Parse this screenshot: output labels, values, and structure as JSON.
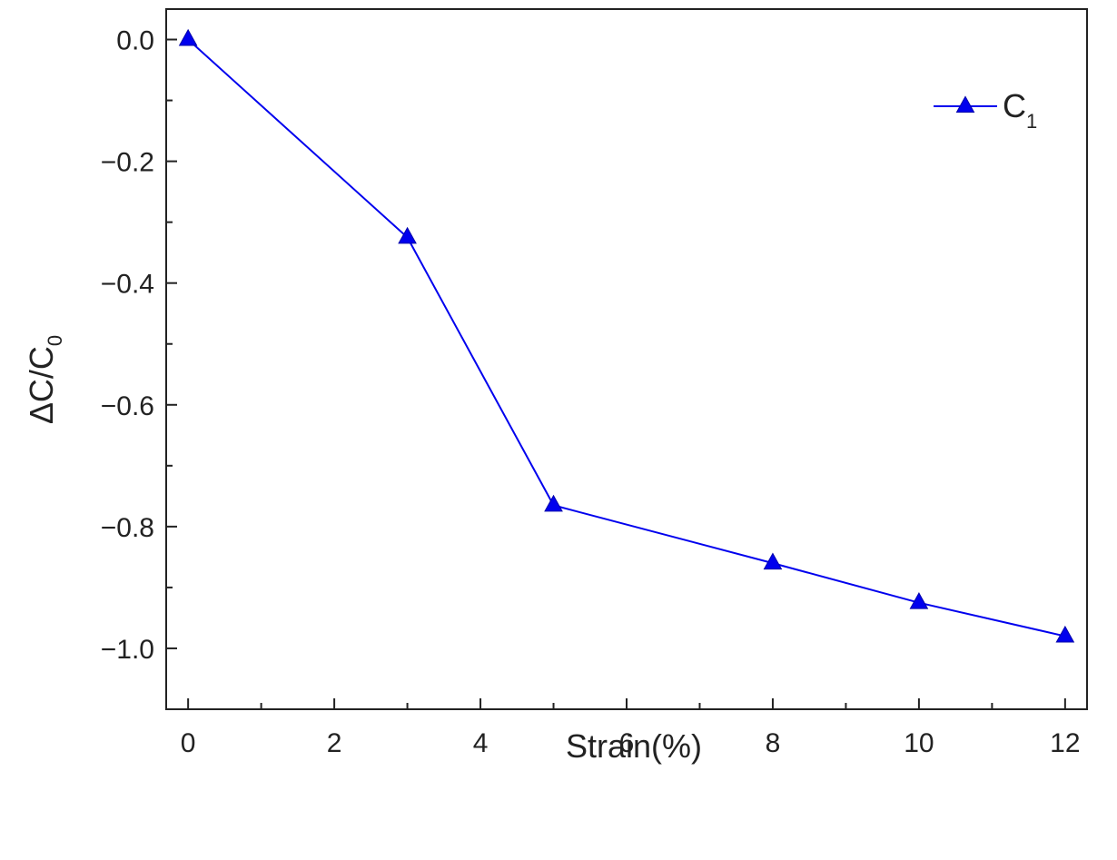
{
  "chart_data": {
    "type": "line",
    "xlabel": "Strain(%)",
    "ylabel": {
      "main": "ΔC/C",
      "sub": "0"
    },
    "xlim": [
      -0.3,
      12.3
    ],
    "ylim": [
      -1.1,
      0.05
    ],
    "x_ticks": [
      0,
      2,
      4,
      6,
      8,
      10,
      12
    ],
    "x_tick_labels": [
      "0",
      "2",
      "4",
      "6",
      "8",
      "10",
      "12"
    ],
    "y_ticks": [
      0.0,
      -0.2,
      -0.4,
      -0.6,
      -0.8,
      -1.0
    ],
    "y_tick_labels": [
      "0.0",
      "−0.2",
      "−0.4",
      "−0.6",
      "−0.8",
      "−1.0"
    ],
    "grid": false,
    "legend_position": "top-right",
    "series": [
      {
        "name": "C",
        "name_sub": "1",
        "color": "#0000ee",
        "marker": "triangle",
        "x": [
          0,
          3,
          5,
          8,
          10,
          12
        ],
        "y": [
          0.0,
          -0.325,
          -0.765,
          -0.86,
          -0.925,
          -0.98
        ]
      }
    ]
  }
}
